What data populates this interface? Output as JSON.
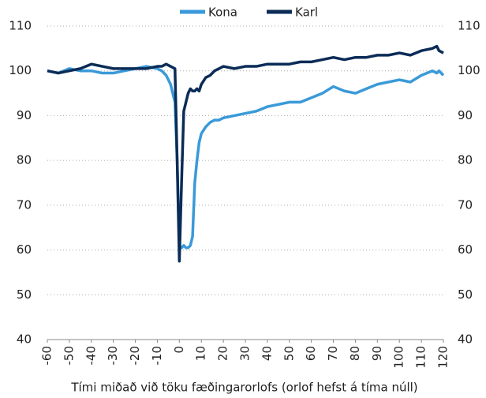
{
  "chart_data": {
    "type": "line",
    "x_label": "Tími miðað við töku fæðingarorlofs (orlof hefst á tíma núll)",
    "x": [
      -60,
      -55,
      -50,
      -45,
      -40,
      -35,
      -30,
      -25,
      -20,
      -15,
      -10,
      -8,
      -6,
      -4,
      -2,
      -1,
      0,
      1,
      2,
      3,
      4,
      5,
      6,
      7,
      8,
      9,
      10,
      12,
      14,
      16,
      18,
      20,
      25,
      30,
      35,
      40,
      45,
      50,
      55,
      60,
      65,
      70,
      75,
      80,
      85,
      90,
      95,
      100,
      105,
      110,
      115,
      117,
      118,
      120
    ],
    "series": [
      {
        "name": "Kona",
        "color": "#3a9ad9",
        "values": [
          100,
          99.5,
          100.5,
          100,
          100,
          99.5,
          99.5,
          100,
          100.5,
          101,
          100.5,
          100,
          99,
          97,
          93,
          80,
          61,
          60.5,
          61,
          60.5,
          60.5,
          61,
          63,
          75,
          80,
          84,
          86,
          87.5,
          88.5,
          89,
          89,
          89.5,
          90,
          90.5,
          91,
          92,
          92.5,
          93,
          93,
          94,
          95,
          96.5,
          95.5,
          95,
          96,
          97,
          97.5,
          98,
          97.5,
          99,
          100,
          99.5,
          100,
          99
        ]
      },
      {
        "name": "Karl",
        "color": "#0b2c57",
        "values": [
          100,
          99.5,
          100,
          100.5,
          101.5,
          101,
          100.5,
          100.5,
          100.5,
          100.5,
          101,
          101,
          101.5,
          101,
          100.5,
          80,
          57.5,
          75,
          91,
          93,
          95,
          96,
          95.5,
          95.5,
          96,
          95.5,
          97,
          98.5,
          99,
          100,
          100.5,
          101,
          100.5,
          101,
          101,
          101.5,
          101.5,
          101.5,
          102,
          102,
          102.5,
          103,
          102.5,
          103,
          103,
          103.5,
          103.5,
          104,
          103.5,
          104.5,
          105,
          105.5,
          104.5,
          104
        ]
      }
    ],
    "xlim": [
      -60,
      120
    ],
    "xticks": [
      -60,
      -50,
      -40,
      -30,
      -20,
      -10,
      0,
      10,
      20,
      30,
      40,
      50,
      60,
      70,
      80,
      90,
      100,
      110,
      120
    ],
    "ylim": [
      40,
      110
    ],
    "yticks": [
      40,
      50,
      60,
      70,
      80,
      90,
      100,
      110
    ],
    "grid": true,
    "legend": "top"
  }
}
